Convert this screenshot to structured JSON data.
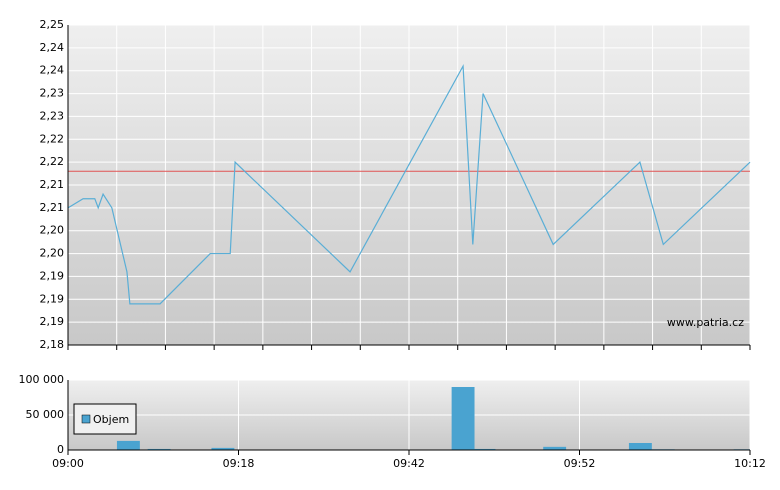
{
  "chart_data": [
    {
      "type": "line",
      "xlim": [
        0,
        14
      ],
      "x_minor_step": 1,
      "ylim": [
        2.18,
        2.25
      ],
      "yticks": [
        {
          "value": 2.25,
          "label": "2,25"
        },
        {
          "value": 2.245,
          "label": "2,24"
        },
        {
          "value": 2.24,
          "label": "2,24"
        },
        {
          "value": 2.235,
          "label": "2,23"
        },
        {
          "value": 2.23,
          "label": "2,23"
        },
        {
          "value": 2.225,
          "label": "2,22"
        },
        {
          "value": 2.22,
          "label": "2,22"
        },
        {
          "value": 2.215,
          "label": "2,21"
        },
        {
          "value": 2.21,
          "label": "2,21"
        },
        {
          "value": 2.205,
          "label": "2,20"
        },
        {
          "value": 2.2,
          "label": "2,20"
        },
        {
          "value": 2.195,
          "label": "2,19"
        },
        {
          "value": 2.19,
          "label": "2,19"
        },
        {
          "value": 2.185,
          "label": "2,19"
        },
        {
          "value": 2.18,
          "label": "2,18"
        }
      ],
      "grid": true,
      "reference_line": {
        "value": 2.218,
        "color": "#e05555"
      },
      "annotation": "www.patria.cz",
      "series": [
        {
          "color": "#5aaed6",
          "x": [
            0,
            0.31,
            0.55,
            0.62,
            0.72,
            0.9,
            1.21,
            1.27,
            1.89,
            2.92,
            3.33,
            3.43,
            5.79,
            8.11,
            8.31,
            8.52,
            9.96,
            11.74,
            12.22,
            14
          ],
          "values": [
            2.21,
            2.212,
            2.212,
            2.21,
            2.213,
            2.21,
            2.196,
            2.189,
            2.189,
            2.2,
            2.2,
            2.22,
            2.196,
            2.241,
            2.202,
            2.235,
            2.202,
            2.22,
            2.202,
            2.22
          ]
        }
      ]
    },
    {
      "type": "bar",
      "xlim": [
        0,
        14
      ],
      "xticks": [
        {
          "value": 0,
          "label": "09:00"
        },
        {
          "value": 3.5,
          "label": "09:18"
        },
        {
          "value": 7,
          "label": "09:42"
        },
        {
          "value": 10.5,
          "label": "09:52"
        },
        {
          "value": 14,
          "label": "10:12"
        }
      ],
      "ylim": [
        0,
        100000
      ],
      "yticks": [
        0,
        {
          "value": 50000,
          "label": "50 000"
        },
        {
          "value": 100000,
          "label": "100 000"
        }
      ],
      "grid": true,
      "legend": "left",
      "series": [
        {
          "name": "Objem",
          "color": "#4aa3d0",
          "x": [
            1.24,
            1.87,
            3.18,
            8.11,
            8.54,
            9.99,
            11.75,
            12.22,
            13.9
          ],
          "values": [
            13000,
            1500,
            3000,
            90000,
            1500,
            4500,
            10000,
            1000,
            1000
          ]
        }
      ]
    }
  ]
}
